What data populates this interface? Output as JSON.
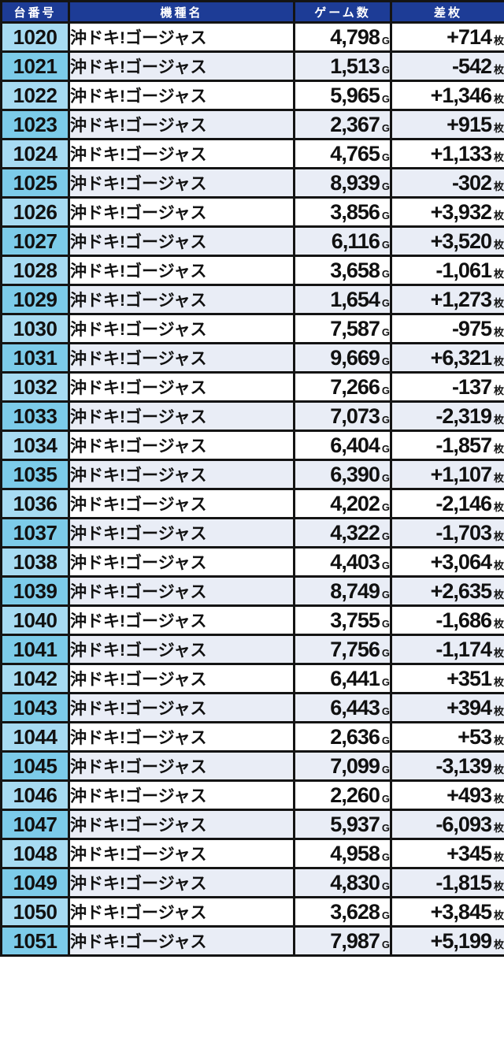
{
  "colors": {
    "header_bg": "#1d3c96",
    "header_text": "#ffffff",
    "border": "#141414",
    "text": "#111111",
    "row_even_bg": "#ffffff",
    "row_odd_bg": "#e9edf6",
    "machine_no_even_bg": "#a7dbf2",
    "machine_no_odd_bg": "#7ccbe9"
  },
  "table": {
    "headers": {
      "machine_number": "台番号",
      "model_name": "機種名",
      "game_count": "ゲーム数",
      "diff_medals": "差枚"
    },
    "units": {
      "game": "G",
      "medal": "枚"
    },
    "rows": [
      {
        "no": "1020",
        "model": "沖ドキ!ゴージャス",
        "games": "4,798",
        "diff": "+714"
      },
      {
        "no": "1021",
        "model": "沖ドキ!ゴージャス",
        "games": "1,513",
        "diff": "-542"
      },
      {
        "no": "1022",
        "model": "沖ドキ!ゴージャス",
        "games": "5,965",
        "diff": "+1,346"
      },
      {
        "no": "1023",
        "model": "沖ドキ!ゴージャス",
        "games": "2,367",
        "diff": "+915"
      },
      {
        "no": "1024",
        "model": "沖ドキ!ゴージャス",
        "games": "4,765",
        "diff": "+1,133"
      },
      {
        "no": "1025",
        "model": "沖ドキ!ゴージャス",
        "games": "8,939",
        "diff": "-302"
      },
      {
        "no": "1026",
        "model": "沖ドキ!ゴージャス",
        "games": "3,856",
        "diff": "+3,932"
      },
      {
        "no": "1027",
        "model": "沖ドキ!ゴージャス",
        "games": "6,116",
        "diff": "+3,520"
      },
      {
        "no": "1028",
        "model": "沖ドキ!ゴージャス",
        "games": "3,658",
        "diff": "-1,061"
      },
      {
        "no": "1029",
        "model": "沖ドキ!ゴージャス",
        "games": "1,654",
        "diff": "+1,273"
      },
      {
        "no": "1030",
        "model": "沖ドキ!ゴージャス",
        "games": "7,587",
        "diff": "-975"
      },
      {
        "no": "1031",
        "model": "沖ドキ!ゴージャス",
        "games": "9,669",
        "diff": "+6,321"
      },
      {
        "no": "1032",
        "model": "沖ドキ!ゴージャス",
        "games": "7,266",
        "diff": "-137"
      },
      {
        "no": "1033",
        "model": "沖ドキ!ゴージャス",
        "games": "7,073",
        "diff": "-2,319"
      },
      {
        "no": "1034",
        "model": "沖ドキ!ゴージャス",
        "games": "6,404",
        "diff": "-1,857"
      },
      {
        "no": "1035",
        "model": "沖ドキ!ゴージャス",
        "games": "6,390",
        "diff": "+1,107"
      },
      {
        "no": "1036",
        "model": "沖ドキ!ゴージャス",
        "games": "4,202",
        "diff": "-2,146"
      },
      {
        "no": "1037",
        "model": "沖ドキ!ゴージャス",
        "games": "4,322",
        "diff": "-1,703"
      },
      {
        "no": "1038",
        "model": "沖ドキ!ゴージャス",
        "games": "4,403",
        "diff": "+3,064"
      },
      {
        "no": "1039",
        "model": "沖ドキ!ゴージャス",
        "games": "8,749",
        "diff": "+2,635"
      },
      {
        "no": "1040",
        "model": "沖ドキ!ゴージャス",
        "games": "3,755",
        "diff": "-1,686"
      },
      {
        "no": "1041",
        "model": "沖ドキ!ゴージャス",
        "games": "7,756",
        "diff": "-1,174"
      },
      {
        "no": "1042",
        "model": "沖ドキ!ゴージャス",
        "games": "6,441",
        "diff": "+351"
      },
      {
        "no": "1043",
        "model": "沖ドキ!ゴージャス",
        "games": "6,443",
        "diff": "+394"
      },
      {
        "no": "1044",
        "model": "沖ドキ!ゴージャス",
        "games": "2,636",
        "diff": "+53"
      },
      {
        "no": "1045",
        "model": "沖ドキ!ゴージャス",
        "games": "7,099",
        "diff": "-3,139"
      },
      {
        "no": "1046",
        "model": "沖ドキ!ゴージャス",
        "games": "2,260",
        "diff": "+493"
      },
      {
        "no": "1047",
        "model": "沖ドキ!ゴージャス",
        "games": "5,937",
        "diff": "-6,093"
      },
      {
        "no": "1048",
        "model": "沖ドキ!ゴージャス",
        "games": "4,958",
        "diff": "+345"
      },
      {
        "no": "1049",
        "model": "沖ドキ!ゴージャス",
        "games": "4,830",
        "diff": "-1,815"
      },
      {
        "no": "1050",
        "model": "沖ドキ!ゴージャス",
        "games": "3,628",
        "diff": "+3,845"
      },
      {
        "no": "1051",
        "model": "沖ドキ!ゴージャス",
        "games": "7,987",
        "diff": "+5,199"
      }
    ]
  },
  "chart_data": {
    "type": "table",
    "title": "",
    "columns": [
      "台番号",
      "機種名",
      "ゲーム数",
      "差枚"
    ],
    "machine_numbers": [
      1020,
      1021,
      1022,
      1023,
      1024,
      1025,
      1026,
      1027,
      1028,
      1029,
      1030,
      1031,
      1032,
      1033,
      1034,
      1035,
      1036,
      1037,
      1038,
      1039,
      1040,
      1041,
      1042,
      1043,
      1044,
      1045,
      1046,
      1047,
      1048,
      1049,
      1050,
      1051
    ],
    "game_counts": [
      4798,
      1513,
      5965,
      2367,
      4765,
      8939,
      3856,
      6116,
      3658,
      1654,
      7587,
      9669,
      7266,
      7073,
      6404,
      6390,
      4202,
      4322,
      4403,
      8749,
      3755,
      7756,
      6441,
      6443,
      2636,
      7099,
      2260,
      5937,
      4958,
      4830,
      3628,
      7987
    ],
    "diff_medals": [
      714,
      -542,
      1346,
      915,
      1133,
      -302,
      3932,
      3520,
      -1061,
      1273,
      -975,
      6321,
      -137,
      -2319,
      -1857,
      1107,
      -2146,
      -1703,
      3064,
      2635,
      -1686,
      -1174,
      351,
      394,
      53,
      -3139,
      493,
      -6093,
      345,
      -1815,
      3845,
      5199
    ]
  }
}
